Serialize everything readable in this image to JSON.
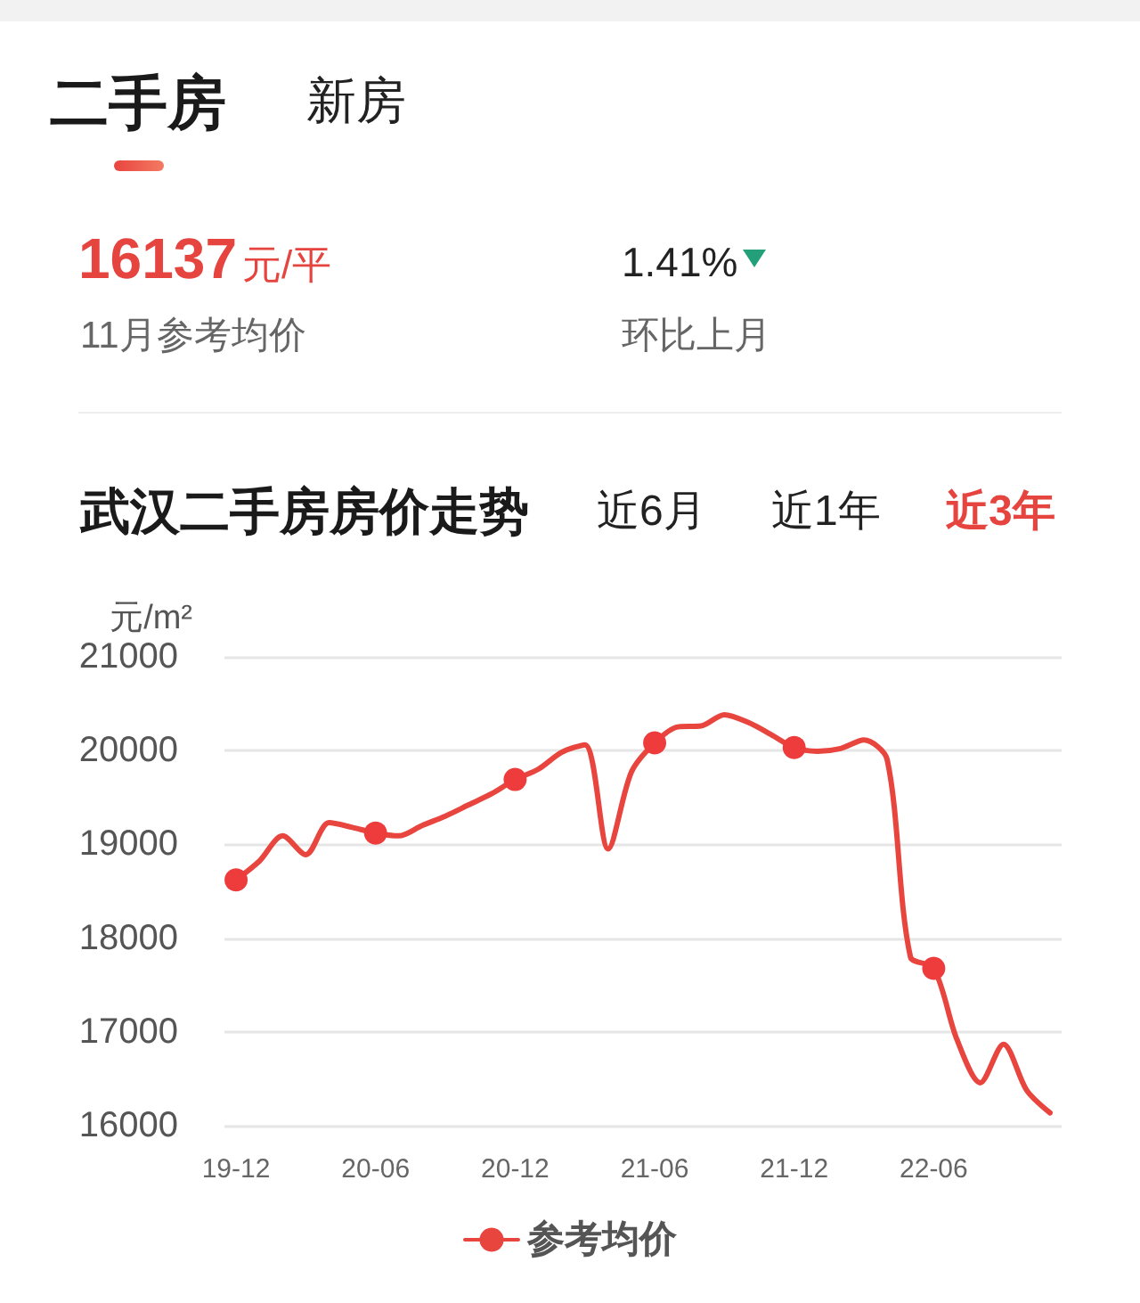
{
  "chart_data": [
    {
      "type": "other",
      "annotations": [
        "二手房",
        "新房",
        "16137",
        "元/平",
        "1.41%",
        "11月参考均价",
        "环比上月"
      ]
    },
    {
      "type": "line",
      "title": "武汉二手房房价走势",
      "annotations": [
        "近6月",
        "近1年",
        "近3年"
      ],
      "ylabel": "元/m²",
      "categories": [
        "19-12",
        null,
        null,
        null,
        null,
        null,
        "20-06",
        null,
        null,
        null,
        null,
        null,
        "20-12",
        null,
        null,
        null,
        null,
        null,
        "21-06",
        null,
        null,
        null,
        null,
        null,
        "21-12",
        null,
        null,
        null,
        null,
        null,
        "22-06",
        null,
        null,
        null,
        null,
        null
      ],
      "series": [
        {
          "name": "参考均价",
          "color": "#e8453f",
          "values": [
            18620,
            18820,
            19090,
            18890,
            19230,
            19180,
            19120,
            19090,
            19200,
            19300,
            19420,
            19540,
            19690,
            19800,
            19980,
            20060,
            18950,
            19770,
            20080,
            20250,
            20260,
            20380,
            20300,
            20170,
            20030,
            19990,
            20020,
            20110,
            19900,
            17800,
            17680,
            16920,
            16460,
            16870,
            16380,
            16140
          ]
        },
        {
          "type": "scatter",
          "color": "#ee3c3c",
          "x": [
            "19-12",
            "20-06",
            "20-12",
            "21-06",
            "21-12",
            "22-06"
          ],
          "values": [
            18620,
            19120,
            19690,
            20080,
            20030,
            17680
          ]
        }
      ],
      "ylim": [
        16000,
        21000
      ],
      "yticks": [
        16000,
        17000,
        18000,
        19000,
        20000,
        21000
      ],
      "grid": "y",
      "legend": "bottom",
      "line_style": "solid"
    }
  ]
}
